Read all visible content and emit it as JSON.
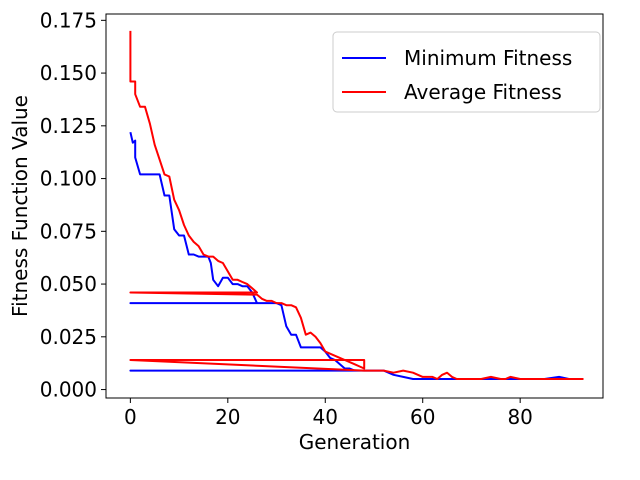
{
  "chart_data": {
    "type": "line",
    "title": "",
    "xlabel": "Generation",
    "ylabel": "Fitness Function Value",
    "xlim": [
      -5,
      97
    ],
    "ylim": [
      -0.004,
      0.178
    ],
    "x_ticks": [
      0,
      20,
      40,
      60,
      80
    ],
    "x_tick_labels": [
      "0",
      "20",
      "40",
      "60",
      "80"
    ],
    "y_ticks": [
      0.0,
      0.025,
      0.05,
      0.075,
      0.1,
      0.125,
      0.15,
      0.175
    ],
    "y_tick_labels": [
      "0.000",
      "0.025",
      "0.050",
      "0.075",
      "0.100",
      "0.125",
      "0.150",
      "0.175"
    ],
    "grid": false,
    "legend_position": "upper right",
    "series": [
      {
        "name": "Minimum Fitness",
        "color": "#0000ff",
        "x": [
          0,
          0.5,
          1,
          1,
          2,
          3,
          4,
          5,
          6,
          7,
          8,
          9,
          10,
          11,
          12,
          13,
          14,
          15,
          16,
          16.5,
          17,
          18,
          19,
          20,
          21,
          22,
          23,
          24,
          25,
          26,
          0,
          30,
          31,
          32,
          33,
          34,
          35,
          37,
          38,
          39,
          40,
          41,
          42,
          43,
          44,
          45,
          46,
          0,
          48,
          50,
          52,
          54,
          56,
          58,
          60,
          65,
          70,
          75,
          80,
          85,
          88,
          90,
          92,
          93
        ],
        "y": [
          0.122,
          0.117,
          0.118,
          0.11,
          0.102,
          0.102,
          0.102,
          0.102,
          0.102,
          0.092,
          0.092,
          0.076,
          0.073,
          0.073,
          0.064,
          0.064,
          0.063,
          0.063,
          0.063,
          0.06,
          0.052,
          0.049,
          0.053,
          0.053,
          0.05,
          0.05,
          0.049,
          0.049,
          0.046,
          0.041,
          0.041,
          0.041,
          0.04,
          0.03,
          0.026,
          0.026,
          0.02,
          0.02,
          0.02,
          0.02,
          0.018,
          0.015,
          0.014,
          0.012,
          0.01,
          0.01,
          0.009,
          0.009,
          0.009,
          0.009,
          0.009,
          0.007,
          0.006,
          0.005,
          0.005,
          0.005,
          0.005,
          0.005,
          0.005,
          0.005,
          0.006,
          0.005,
          0.005,
          0.005
        ]
      },
      {
        "name": "Average Fitness",
        "color": "#ff0000",
        "x": [
          0,
          0,
          1,
          1,
          2,
          3,
          4,
          5,
          6,
          7,
          8,
          9,
          10,
          11,
          12,
          13,
          14,
          15,
          16,
          17,
          18,
          19,
          20,
          21,
          22,
          23,
          24,
          25,
          26,
          0,
          25,
          26,
          27,
          28,
          29,
          30,
          31,
          32,
          33,
          34,
          35,
          36,
          37,
          38,
          39,
          40,
          41,
          42,
          43,
          44,
          45,
          46,
          47,
          48,
          48,
          0,
          48,
          50,
          52,
          54,
          56,
          58,
          60,
          62,
          63,
          64,
          65,
          66,
          67,
          68,
          70,
          72,
          74,
          76,
          77,
          78,
          80,
          82,
          84,
          86,
          87,
          88,
          89,
          90,
          92,
          93
        ],
        "y": [
          0.17,
          0.146,
          0.146,
          0.14,
          0.134,
          0.134,
          0.126,
          0.116,
          0.109,
          0.102,
          0.101,
          0.09,
          0.085,
          0.078,
          0.073,
          0.07,
          0.068,
          0.064,
          0.063,
          0.063,
          0.061,
          0.06,
          0.056,
          0.052,
          0.052,
          0.051,
          0.05,
          0.048,
          0.046,
          0.046,
          0.045,
          0.045,
          0.043,
          0.042,
          0.042,
          0.041,
          0.041,
          0.04,
          0.04,
          0.039,
          0.034,
          0.026,
          0.027,
          0.025,
          0.022,
          0.018,
          0.017,
          0.016,
          0.015,
          0.014,
          0.013,
          0.012,
          0.011,
          0.01,
          0.014,
          0.014,
          0.009,
          0.009,
          0.009,
          0.008,
          0.009,
          0.008,
          0.006,
          0.006,
          0.005,
          0.007,
          0.008,
          0.006,
          0.005,
          0.005,
          0.005,
          0.005,
          0.006,
          0.005,
          0.005,
          0.006,
          0.005,
          0.005,
          0.005,
          0.005,
          0.005,
          0.005,
          0.005,
          0.005,
          0.005,
          0.005
        ]
      }
    ]
  }
}
